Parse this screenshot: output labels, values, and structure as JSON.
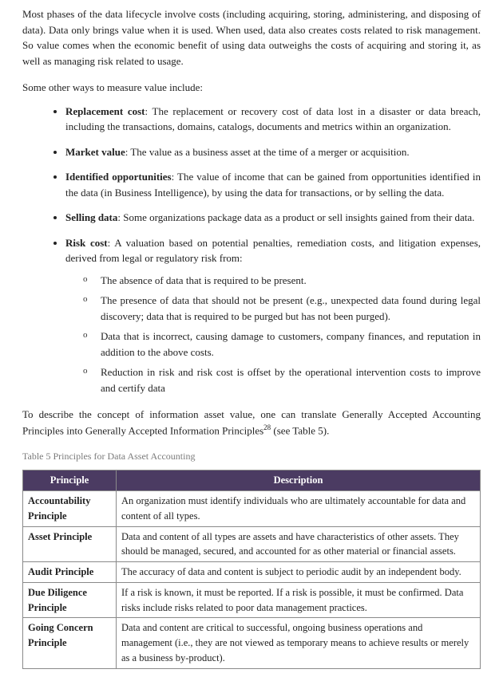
{
  "intro_paragraph": "Most phases of the data lifecycle involve costs (including acquiring, storing, administering, and disposing of data). Data only brings value when it is used. When used, data also creates costs related to risk management. So value comes when the economic benefit of using data outweighs the costs of acquiring and storing it, as well as managing risk related to usage.",
  "lead_in": "Some other ways to measure value include:",
  "bullets": [
    {
      "term": "Replacement cost",
      "text": ": The replacement or recovery cost of data lost in a disaster or data breach, including the transactions, domains, catalogs, documents and metrics within an organization."
    },
    {
      "term": "Market value",
      "text": ": The value as a business asset at the time of a merger or acquisition."
    },
    {
      "term": "Identified opportunities",
      "text": ": The value of income that can be gained from opportunities identified in the data (in Business Intelligence), by using the data for transactions, or by selling the data."
    },
    {
      "term": "Selling data",
      "text": ": Some organizations package data as a product or sell insights gained from their data."
    },
    {
      "term": "Risk cost",
      "text": ": A valuation based on potential penalties, remediation costs, and litigation expenses, derived from legal or regulatory risk from:"
    }
  ],
  "risk_sublist": [
    "The absence of data that is required to be present.",
    "The presence of data that should not be present (e.g., unexpected data found during legal discovery; data that is required to be purged but has not been purged).",
    "Data that is incorrect, causing damage to customers, company finances, and reputation in addition to the above costs.",
    "Reduction in risk and risk cost is offset by the operational intervention costs to improve and certify data"
  ],
  "gaap_para_pre": "To describe the concept of information asset value, one can translate Generally Accepted Accounting Principles into Generally Accepted Information Principles",
  "gaap_footnote": "28",
  "gaap_para_post": " (see Table 5).",
  "table_caption": "Table 5 Principles for Data Asset Accounting",
  "table": {
    "header_bg": "#4b3b62",
    "header_fg": "#ffffff",
    "border_color": "#8a8a8a",
    "columns": [
      "Principle",
      "Description"
    ],
    "rows": [
      {
        "principle": "Accountability Principle",
        "description": "An organization must identify individuals who are ultimately accountable for data and content of all types."
      },
      {
        "principle": "Asset Principle",
        "description": "Data and content of all types are assets and have characteristics of other assets. They should be managed, secured, and accounted for as other material or financial assets."
      },
      {
        "principle": "Audit Principle",
        "description": "The accuracy of data and content is subject to periodic audit by an independent body."
      },
      {
        "principle": "Due Diligence Principle",
        "description": "If a risk is known, it must be reported. If a risk is possible, it must be confirmed. Data risks include risks related to poor data management practices."
      },
      {
        "principle": "Going Concern Principle",
        "description": "Data and content are critical to successful, ongoing business operations and management (i.e., they are not viewed as temporary means to achieve results or merely as a business by-product)."
      }
    ]
  }
}
